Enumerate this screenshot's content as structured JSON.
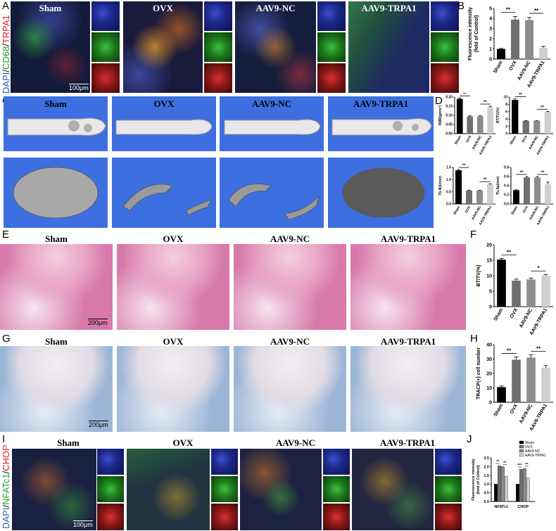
{
  "panels": {
    "A": {
      "letter": "A",
      "titles": [
        "Sham",
        "OVX",
        "AAV9-NC",
        "AAV9-TRPA1"
      ],
      "stain": {
        "dapi": "DAPI",
        "sep1": "/",
        "marker1": "CD68",
        "sep2": "/",
        "marker2": "TRPA1"
      },
      "scale": "100μm"
    },
    "B": {
      "letter": "B"
    },
    "C": {
      "letter": "C",
      "titles": [
        "Sham",
        "OVX",
        "AAV9-NC",
        "AAV9-TRPA1"
      ]
    },
    "D": {
      "letter": "D"
    },
    "E": {
      "letter": "E",
      "titles": [
        "Sham",
        "OVX",
        "AAV9-NC",
        "AAV9-TRPA1"
      ],
      "scale": "200μm"
    },
    "F": {
      "letter": "F"
    },
    "G": {
      "letter": "G",
      "titles": [
        "Sham",
        "OVX",
        "AAV9-NC",
        "AAV9-TRPA1"
      ],
      "scale": "200μm"
    },
    "H": {
      "letter": "H"
    },
    "I": {
      "letter": "I",
      "titles": [
        "Sham",
        "OVX",
        "AAV9-NC",
        "AAV9-TRPA1"
      ],
      "stain": {
        "dapi": "DAPI",
        "sep1": "/",
        "marker1": "NFATc1",
        "sep2": "/",
        "marker2": "CHOP"
      },
      "scale": "100μm"
    },
    "J": {
      "letter": "J"
    }
  },
  "colors": {
    "dapi": "#2a5db0",
    "green": "#2aa02a",
    "red": "#e02020",
    "bar_sham": "#000000",
    "bar_ovx": "#6f6f6f",
    "bar_nc": "#8c8c8c",
    "bar_trpa": "#cfcfcf"
  },
  "chart_data": [
    {
      "id": "B",
      "type": "bar",
      "categories": [
        "Sham",
        "OVX",
        "AAV9-NC",
        "AAV9-TRPA1"
      ],
      "values": [
        1.0,
        3.9,
        3.85,
        1.1
      ],
      "errors": [
        0.05,
        0.3,
        0.25,
        0.15
      ],
      "ylabel": "Fluorescence intensity\n(fold of Control)",
      "ylim": [
        0,
        5
      ],
      "yticks": [
        0,
        1,
        2,
        3,
        4,
        5
      ],
      "sig": [
        {
          "from": 0,
          "to": 1,
          "label": "**"
        },
        {
          "from": 2,
          "to": 3,
          "label": "**"
        }
      ]
    },
    {
      "id": "D1",
      "type": "bar",
      "categories": [
        "Sham",
        "OVX",
        "AAV9-NC",
        "AAV9-TRPA1"
      ],
      "values": [
        0.19,
        0.095,
        0.095,
        0.145
      ],
      "errors": [
        0.005,
        0.003,
        0.003,
        0.005
      ],
      "ylabel": "BMD(g/cm³)",
      "ylim": [
        0,
        0.2
      ],
      "yticks": [
        0,
        0.05,
        0.1,
        0.15,
        0.2
      ],
      "yticklabels": [
        "0.00",
        "0.05",
        "0.10",
        "0.15",
        "0.20"
      ],
      "sig": [
        {
          "from": 0,
          "to": 1,
          "label": "**"
        },
        {
          "from": 2,
          "to": 3,
          "label": "**"
        }
      ]
    },
    {
      "id": "D2",
      "type": "bar",
      "categories": [
        "Sham",
        "OVX",
        "AAV9-NC",
        "AAV9-TRPA1"
      ],
      "values": [
        9.2,
        3.5,
        3.5,
        5.9
      ],
      "errors": [
        0.3,
        0.1,
        0.1,
        0.2
      ],
      "ylabel": "BT/TV(%)",
      "ylim": [
        0,
        10
      ],
      "yticks": [
        0,
        2,
        4,
        6,
        8,
        10
      ],
      "sig": [
        {
          "from": 0,
          "to": 1,
          "label": "**"
        },
        {
          "from": 2,
          "to": 3,
          "label": "**"
        }
      ]
    },
    {
      "id": "D3",
      "type": "bar",
      "categories": [
        "Sham",
        "OVX",
        "AAV9-NC",
        "AAV9-TRPA1"
      ],
      "values": [
        1.38,
        0.55,
        0.55,
        0.8
      ],
      "errors": [
        0.03,
        0.01,
        0.01,
        0.03
      ],
      "ylabel": "Tb.N(1/mm)",
      "ylim": [
        0,
        1.5
      ],
      "yticks": [
        0,
        0.5,
        1.0,
        1.5
      ],
      "yticklabels": [
        "0.0",
        "0.5",
        "1.0",
        "1.5"
      ],
      "sig": [
        {
          "from": 0,
          "to": 1,
          "label": "**"
        },
        {
          "from": 2,
          "to": 3,
          "label": "**"
        }
      ]
    },
    {
      "id": "D4",
      "type": "bar",
      "categories": [
        "Sham",
        "OVX",
        "AAV9-NC",
        "AAV9-TRPA1"
      ],
      "values": [
        0.3,
        0.58,
        0.58,
        0.43
      ],
      "errors": [
        0.01,
        0.02,
        0.02,
        0.05
      ],
      "ylabel": "Tb.Sp(mm)",
      "ylim": [
        0,
        0.8
      ],
      "yticks": [
        0,
        0.2,
        0.4,
        0.6,
        0.8
      ],
      "yticklabels": [
        "0.0",
        "0.2",
        "0.4",
        "0.6",
        "0.8"
      ],
      "sig": [
        {
          "from": 0,
          "to": 1,
          "label": "**"
        },
        {
          "from": 2,
          "to": 3,
          "label": "**"
        }
      ]
    },
    {
      "id": "F",
      "type": "bar",
      "categories": [
        "Sham",
        "OVX",
        "AAV9-NC",
        "AAV9-TRPA1"
      ],
      "values": [
        15.2,
        8.4,
        8.8,
        10.0
      ],
      "errors": [
        0.4,
        0.5,
        0.4,
        0.4
      ],
      "ylabel": "BT/TV(%)",
      "ylim": [
        0,
        20
      ],
      "yticks": [
        0,
        5,
        10,
        15,
        20
      ],
      "sig": [
        {
          "from": 0,
          "to": 1,
          "label": "**"
        },
        {
          "from": 2,
          "to": 3,
          "label": "*"
        }
      ]
    },
    {
      "id": "H",
      "type": "bar",
      "categories": [
        "Sham",
        "OVX",
        "AAV9-NC",
        "AAV9-TRPA1"
      ],
      "values": [
        10.5,
        29.5,
        31.0,
        24.0
      ],
      "errors": [
        0.8,
        2.0,
        2.0,
        1.5
      ],
      "ylabel": "TRACP(+) cell number",
      "ylim": [
        0,
        40
      ],
      "yticks": [
        0,
        10,
        20,
        30,
        40
      ],
      "sig": [
        {
          "from": 0,
          "to": 1,
          "label": "**"
        },
        {
          "from": 2,
          "to": 3,
          "label": "**"
        }
      ]
    },
    {
      "id": "J",
      "type": "bar",
      "categories": [
        "NFATc1",
        "CHOP"
      ],
      "series": [
        {
          "name": "Sham",
          "values": [
            1.0,
            1.0
          ]
        },
        {
          "name": "OVX",
          "values": [
            2.05,
            1.85
          ]
        },
        {
          "name": "AAV9-NC",
          "values": [
            2.0,
            1.9
          ]
        },
        {
          "name": "AAV9-TRPA1",
          "values": [
            1.45,
            1.35
          ]
        }
      ],
      "ylabel": "Fluorescence intensity\n(fold of Control)",
      "ylim": [
        0,
        2.5
      ],
      "yticks": [
        0,
        0.5,
        1.0,
        1.5,
        2.0,
        2.5
      ],
      "yticklabels": [
        "0.0",
        "0.5",
        "1.0",
        "1.5",
        "2.0",
        "2.5"
      ],
      "legend": "top-right",
      "sig": [
        "**",
        "**",
        "***",
        "**"
      ]
    }
  ]
}
